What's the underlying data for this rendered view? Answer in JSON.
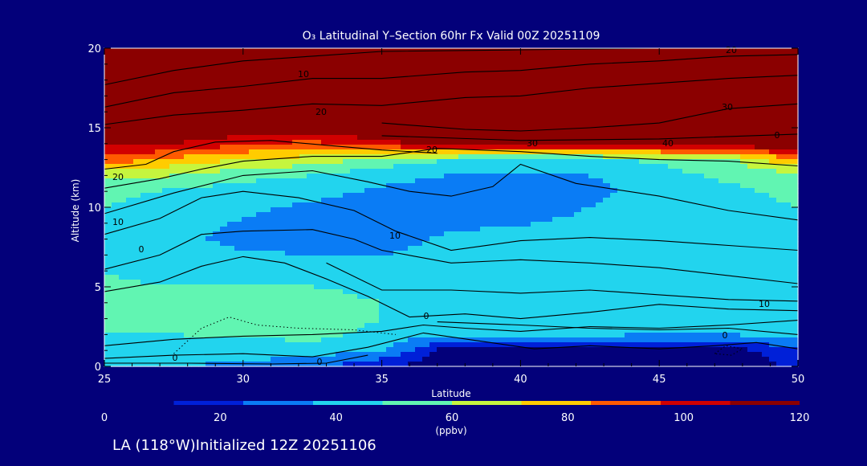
{
  "figure": {
    "title": "O₃ Latitudinal Y–Section 60hr  Fx Valid 00Z 20251109",
    "footer": "LA (118°W)Initialized 12Z 20251106"
  },
  "chart_data": {
    "type": "heatmap",
    "title": "O₃ Latitudinal Y–Section 60hr  Fx Valid 00Z 20251109",
    "xlabel": "Latitude",
    "ylabel": "Altitude (km)",
    "xlim": [
      25,
      50
    ],
    "ylim": [
      0,
      20
    ],
    "xticks": [
      25,
      30,
      35,
      40,
      45,
      50
    ],
    "yticks": [
      0,
      5,
      10,
      15,
      20
    ],
    "colorbar": {
      "label": "(ppbv)",
      "min": 0,
      "max": 120,
      "ticks": [
        0,
        20,
        40,
        60,
        80,
        100,
        120
      ],
      "colors": [
        "#03007a",
        "#0020d8",
        "#0a7cf5",
        "#22d4ee",
        "#61f5b2",
        "#c6f53e",
        "#ffcc00",
        "#ff5a00",
        "#d10000",
        "#8b0000"
      ]
    },
    "latitudes": [
      25,
      27.5,
      30,
      32.5,
      35,
      37.5,
      40,
      42.5,
      45,
      47.5,
      50
    ],
    "altitudes": [
      0,
      1,
      2,
      3,
      4,
      6,
      8,
      10,
      11,
      12,
      13,
      14,
      15,
      17,
      20
    ],
    "ozone_ppbv": [
      [
        38,
        36,
        34,
        28,
        12,
        4,
        4,
        4,
        4,
        2,
        16
      ],
      [
        44,
        42,
        41,
        42,
        38,
        4,
        4,
        4,
        4,
        4,
        24
      ],
      [
        48,
        48,
        50,
        52,
        44,
        38,
        40,
        38,
        36,
        36,
        40
      ],
      [
        50,
        50,
        52,
        54,
        48,
        44,
        44,
        42,
        42,
        42,
        44
      ],
      [
        50,
        50,
        52,
        54,
        48,
        46,
        46,
        44,
        44,
        44,
        44
      ],
      [
        48,
        46,
        44,
        42,
        40,
        40,
        42,
        42,
        42,
        42,
        42
      ],
      [
        46,
        40,
        32,
        30,
        32,
        38,
        40,
        42,
        42,
        44,
        46
      ],
      [
        48,
        42,
        38,
        34,
        30,
        30,
        30,
        36,
        44,
        46,
        48
      ],
      [
        52,
        46,
        42,
        40,
        34,
        28,
        28,
        32,
        42,
        46,
        50
      ],
      [
        64,
        60,
        52,
        48,
        40,
        36,
        34,
        36,
        44,
        50,
        56
      ],
      [
        92,
        80,
        72,
        66,
        56,
        48,
        44,
        46,
        50,
        58,
        84
      ],
      [
        112,
        108,
        98,
        92,
        104,
        116,
        120,
        120,
        120,
        118,
        120
      ],
      [
        120,
        120,
        120,
        120,
        120,
        120,
        120,
        120,
        120,
        120,
        120
      ],
      [
        120,
        120,
        120,
        120,
        120,
        120,
        120,
        120,
        120,
        120,
        120
      ],
      [
        120,
        120,
        120,
        120,
        120,
        120,
        120,
        120,
        120,
        120,
        120
      ]
    ],
    "contour_labels": [
      "10",
      "20",
      "20",
      "20",
      "30",
      "40",
      "30",
      "20",
      "10",
      "0",
      "10",
      "0",
      "0",
      "0",
      "10",
      "0",
      "0"
    ]
  }
}
